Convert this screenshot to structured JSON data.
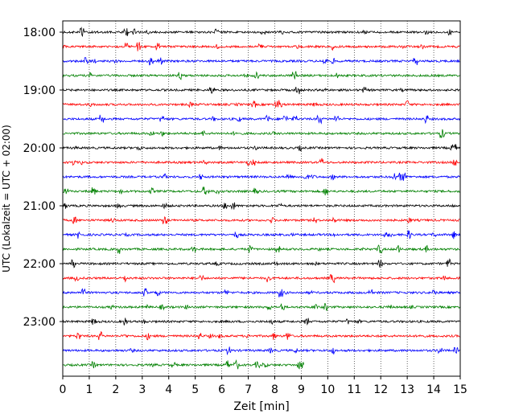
{
  "chart_data": {
    "type": "line",
    "title": "",
    "xlabel": "Zeit  [min]",
    "ylabel": "UTC (Lokalzeit = UTC + 02:00)",
    "xlim": [
      0,
      15
    ],
    "xticks": [
      "0",
      "1",
      "2",
      "3",
      "4",
      "5",
      "6",
      "7",
      "8",
      "9",
      "10",
      "11",
      "12",
      "13",
      "14",
      "15"
    ],
    "yticks": [
      "18:00",
      "19:00",
      "20:00",
      "21:00",
      "22:00",
      "23:00"
    ],
    "grid": "vertical dotted",
    "colors": [
      "#000000",
      "#ff0000",
      "#0000ff",
      "#008000"
    ],
    "series": [
      {
        "start": "18:00",
        "x_end": 15
      },
      {
        "start": "18:15",
        "x_end": 15
      },
      {
        "start": "18:30",
        "x_end": 15
      },
      {
        "start": "18:45",
        "x_end": 15
      },
      {
        "start": "19:00",
        "x_end": 15
      },
      {
        "start": "19:15",
        "x_end": 15
      },
      {
        "start": "19:30",
        "x_end": 15
      },
      {
        "start": "19:45",
        "x_end": 15
      },
      {
        "start": "20:00",
        "x_end": 15
      },
      {
        "start": "20:15",
        "x_end": 15
      },
      {
        "start": "20:30",
        "x_end": 15
      },
      {
        "start": "20:45",
        "x_end": 15
      },
      {
        "start": "21:00",
        "x_end": 15
      },
      {
        "start": "21:15",
        "x_end": 15
      },
      {
        "start": "21:30",
        "x_end": 15
      },
      {
        "start": "21:45",
        "x_end": 15
      },
      {
        "start": "22:00",
        "x_end": 15
      },
      {
        "start": "22:15",
        "x_end": 15
      },
      {
        "start": "22:30",
        "x_end": 15
      },
      {
        "start": "22:45",
        "x_end": 15
      },
      {
        "start": "23:00",
        "x_end": 15
      },
      {
        "start": "23:15",
        "x_end": 15
      },
      {
        "start": "23:30",
        "x_end": 15
      },
      {
        "start": "23:45",
        "x_end": 9.1
      }
    ]
  }
}
